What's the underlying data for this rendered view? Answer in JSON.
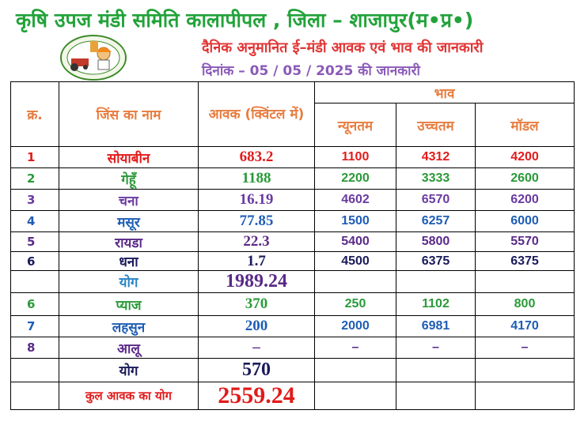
{
  "header": {
    "title": "कृषि उपज मंडी समिति कालापीपल , जिला – शाजापुर(म•प्र•)",
    "subtitle": "दैनिक अनुमानित ई–मंडी आवक एवं भाव की जानकारी",
    "date_line": "दिनांक – 05 / 05 / 2025 की जानकारी"
  },
  "colors": {
    "title": "#22a33a",
    "subtitle": "#e23434",
    "date": "#8a5ab8",
    "header_cells": "#e87c3e"
  },
  "table": {
    "headers": {
      "sn": "क्र.",
      "name": "जिंस का नाम",
      "arrival": "आवक (क्विंटल में)",
      "price": "भाव",
      "min": "न्यूनतम",
      "max": "उच्चतम",
      "modal": "मॉडल"
    },
    "rows": [
      {
        "sn": "1",
        "name": "सोयाबीन",
        "qty": "683.2",
        "min": "1100",
        "max": "4312",
        "modal": "4200",
        "color": "#e21b1b"
      },
      {
        "sn": "2",
        "name": "गेहूँ",
        "qty": "1188",
        "min": "2200",
        "max": "3333",
        "modal": "2600",
        "color": "#2a9a38"
      },
      {
        "sn": "3",
        "name": "चना",
        "qty": "16.19",
        "min": "4602",
        "max": "6570",
        "modal": "6200",
        "color": "#6a3aa0"
      },
      {
        "sn": "4",
        "name": "मसूर",
        "qty": "77.85",
        "min": "1500",
        "max": "6257",
        "modal": "6000",
        "color": "#1e5db5"
      },
      {
        "sn": "5",
        "name": "रायडा",
        "qty": "22.3",
        "min": "5400",
        "max": "5800",
        "modal": "5570",
        "color": "#5a2a88"
      },
      {
        "sn": "6",
        "name": "धना",
        "qty": "1.7",
        "min": "4500",
        "max": "6375",
        "modal": "6375",
        "color": "#1a1a5a"
      }
    ],
    "subtotal1": {
      "label": "योग",
      "qty": "1989.24",
      "label_color": "#2a85c7",
      "qty_color": "#5a2a88"
    },
    "rows2": [
      {
        "sn": "6",
        "name": "प्याज",
        "qty": "370",
        "min": "250",
        "max": "1102",
        "modal": "800",
        "color": "#2a9a38"
      },
      {
        "sn": "7",
        "name": "लहसुन",
        "qty": "200",
        "min": "2000",
        "max": "6981",
        "modal": "4170",
        "color": "#1e5db5"
      },
      {
        "sn": "8",
        "name": "आलू",
        "qty": "–",
        "min": "–",
        "max": "–",
        "modal": "–",
        "color": "#5a2a88"
      }
    ],
    "subtotal2": {
      "label": "योग",
      "qty": "570",
      "label_color": "#1a1a5a",
      "qty_color": "#1a1a5a"
    },
    "grand_total": {
      "label": "कुल आवक का योग",
      "qty": "2559.24",
      "label_color": "#e21b1b",
      "qty_color": "#e21b1b"
    }
  }
}
